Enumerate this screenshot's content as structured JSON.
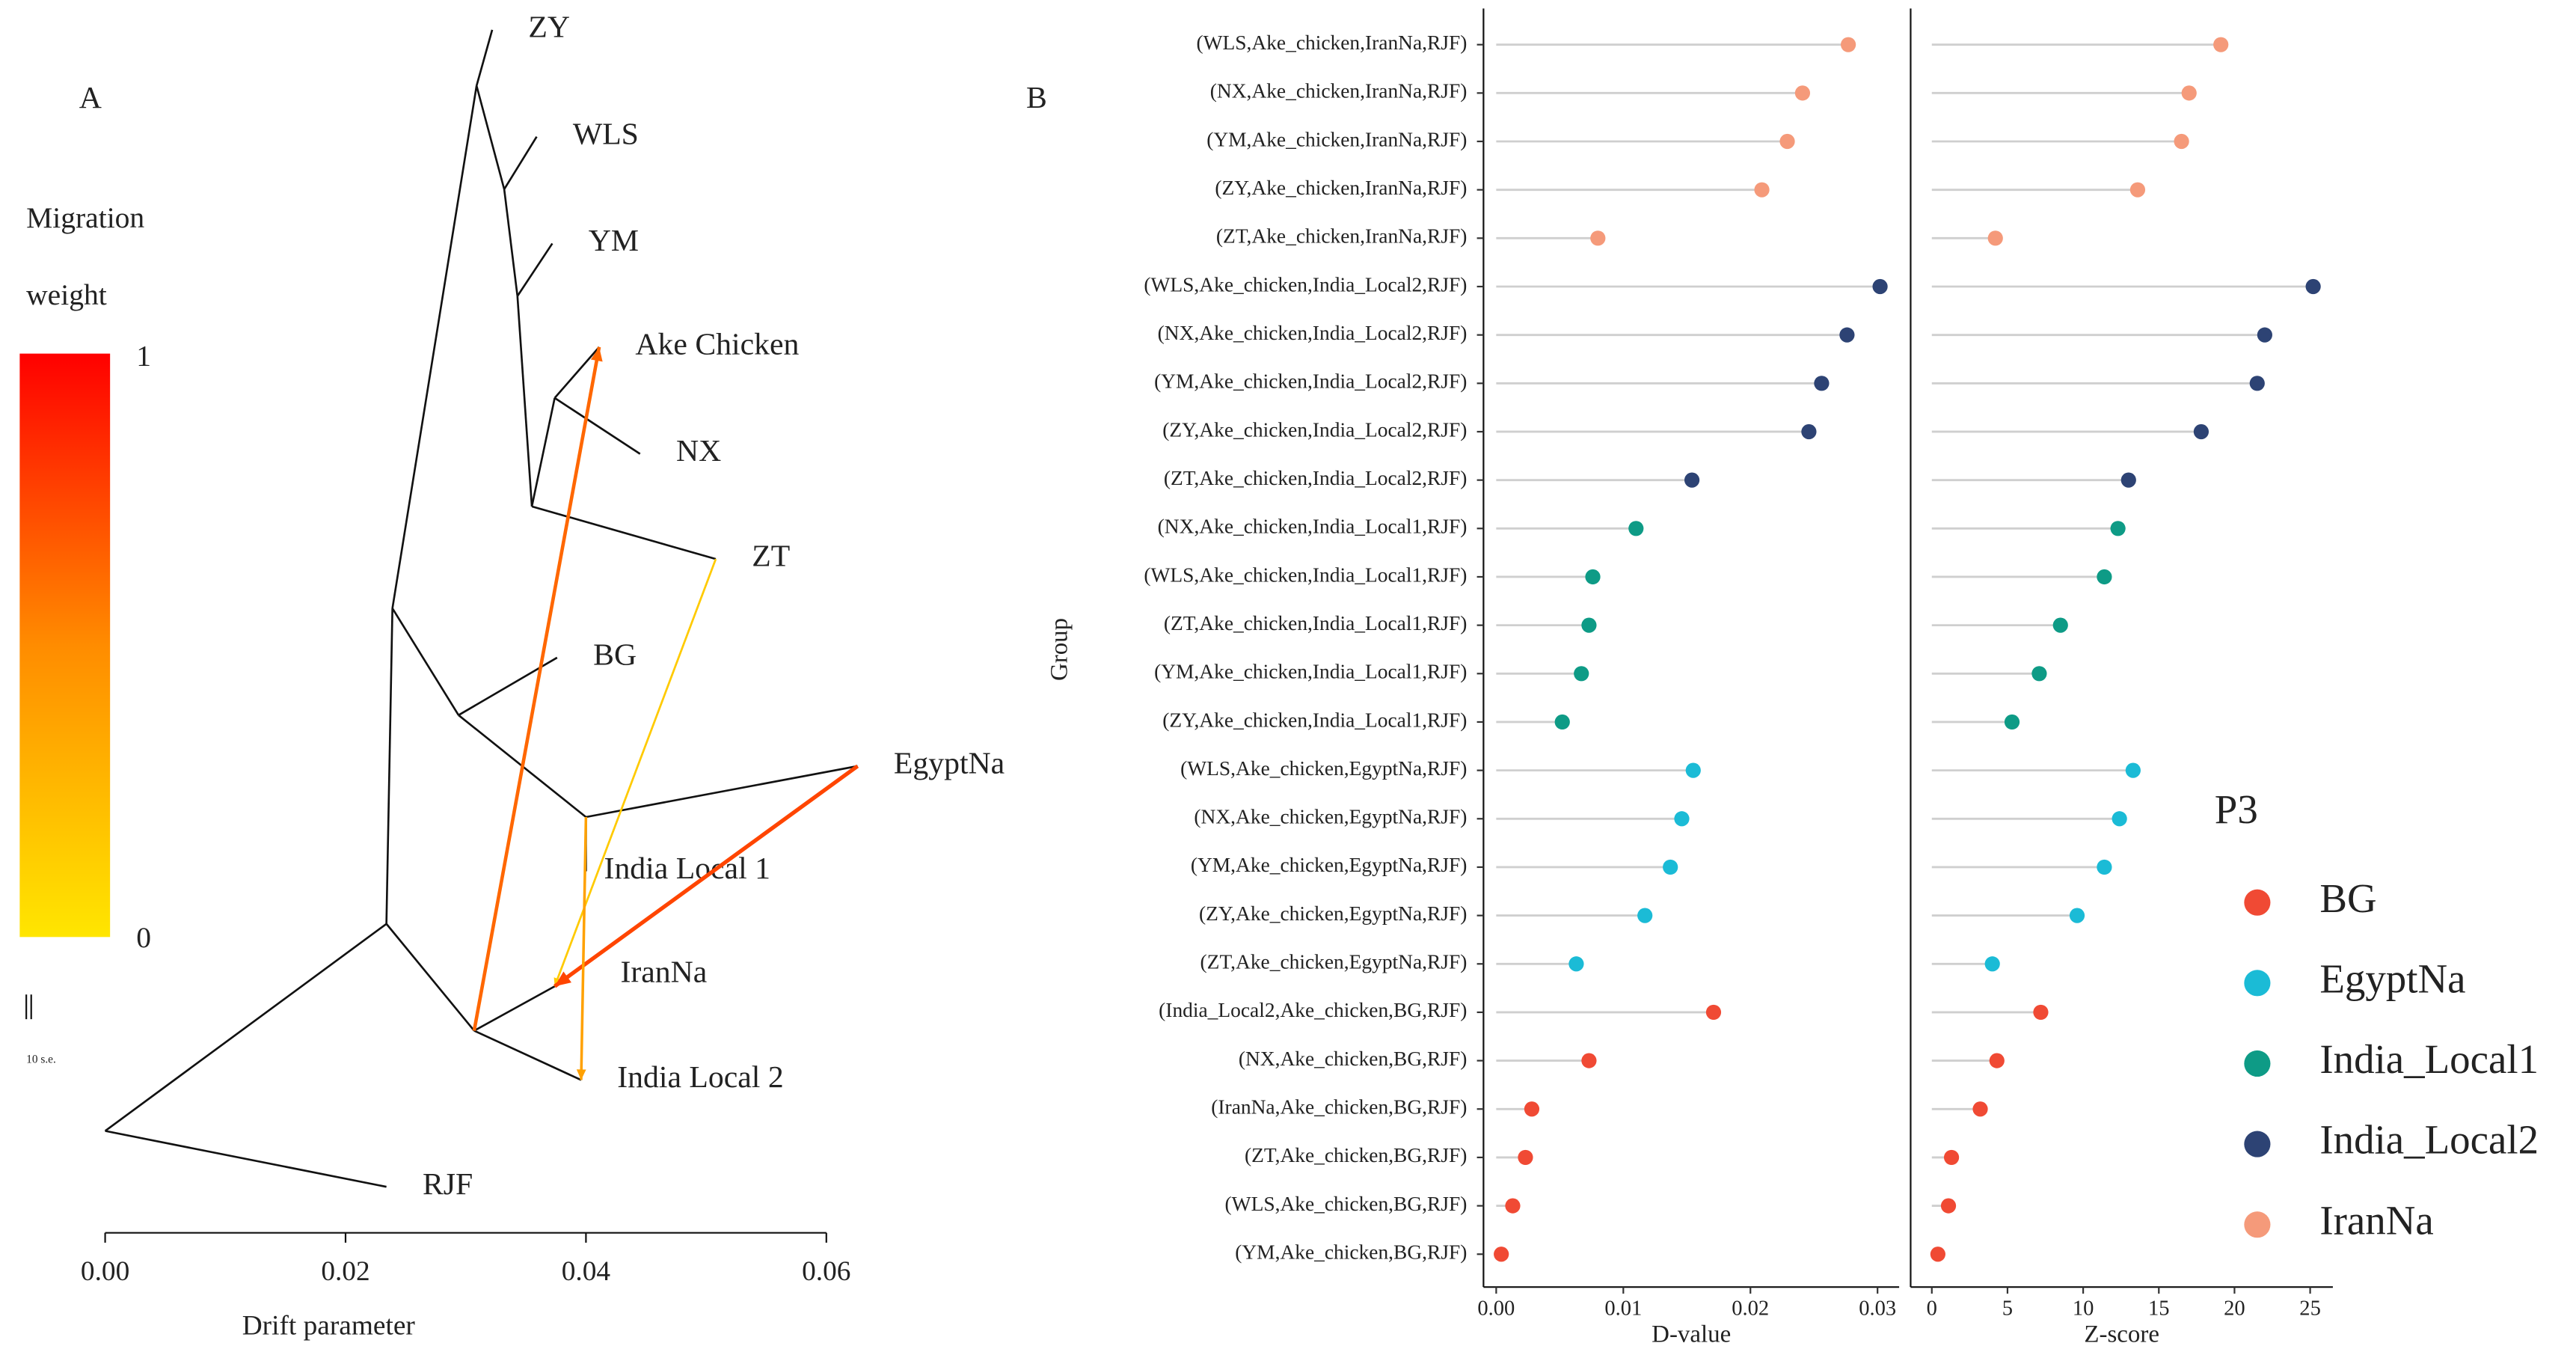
{
  "chart_data": [
    {
      "type": "tree",
      "panel_label": "A",
      "xlabel": "Drift parameter",
      "xlim": [
        0,
        0.0626
      ],
      "xticks": [
        {
          "value": 0,
          "label": "0.00"
        },
        {
          "value": 0.02,
          "label": "0.02"
        },
        {
          "value": 0.04,
          "label": "0.04"
        },
        {
          "value": 0.06,
          "label": "0.06"
        }
      ],
      "nodes": [
        {
          "x": 0
        },
        {
          "name": "RJF",
          "x": 0.0234
        },
        {
          "x": 0.0234
        },
        {
          "x": 0.0307
        },
        {
          "name": "IranNa",
          "x": 0.0374
        },
        {
          "name": "India Local 2",
          "x": 0.0396
        },
        {
          "x": 0.0239
        },
        {
          "x": 0.0294
        },
        {
          "name": "BG",
          "x": 0.0376
        },
        {
          "x": 0.04
        },
        {
          "name": "India Local 1",
          "x": 0.04
        },
        {
          "name": "EgyptNa",
          "x": 0.0626
        },
        {
          "x": 0.0309
        },
        {
          "name": "ZY",
          "x": 0.0322
        },
        {
          "x": 0.0332
        },
        {
          "name": "WLS",
          "x": 0.0359
        },
        {
          "x": 0.0343
        },
        {
          "name": "YM",
          "x": 0.0372
        },
        {
          "x": 0.0355
        },
        {
          "name": "ZT",
          "x": 0.0508
        },
        {
          "x": 0.0374
        },
        {
          "name": "NX",
          "x": 0.0445
        },
        {
          "name": "Ake Chicken",
          "x": 0.0411
        }
      ],
      "edges": [
        [
          0,
          1
        ],
        [
          0,
          2
        ],
        [
          2,
          6
        ],
        [
          2,
          3
        ],
        [
          3,
          4
        ],
        [
          3,
          5
        ],
        [
          6,
          12
        ],
        [
          6,
          7
        ],
        [
          7,
          8
        ],
        [
          7,
          9
        ],
        [
          9,
          10
        ],
        [
          9,
          11
        ],
        [
          12,
          13
        ],
        [
          12,
          14
        ],
        [
          14,
          15
        ],
        [
          14,
          16
        ],
        [
          16,
          17
        ],
        [
          16,
          18
        ],
        [
          18,
          19
        ],
        [
          18,
          20
        ],
        [
          20,
          21
        ],
        [
          20,
          22
        ]
      ],
      "migrations": [
        {
          "from": 3,
          "to": 22,
          "weight": 0.55
        },
        {
          "from": 19,
          "to": 4,
          "weight": 0.12
        },
        {
          "from": 11,
          "to": 4,
          "weight": 0.7
        },
        {
          "from": 9,
          "to": 5,
          "weight": 0.3
        }
      ],
      "colorbar_title": [
        "Migration",
        "weight"
      ],
      "colorbar_ticks": [
        0,
        1
      ],
      "scale_label": "10 s.e."
    },
    {
      "type": "lollipop",
      "panel_label": "B",
      "xlabel": "D-value",
      "ylabel": "Group",
      "legend_title": "P3",
      "xlim": [
        -0.001,
        0.0317
      ],
      "xticks": [
        {
          "value": 0,
          "label": "0.00"
        },
        {
          "value": 0.01,
          "label": "0.01"
        },
        {
          "value": 0.02,
          "label": "0.02"
        },
        {
          "value": 0.03,
          "label": "0.03"
        }
      ],
      "categories": [
        "(WLS,Ake_chicken,IranNa,RJF)",
        "(NX,Ake_chicken,IranNa,RJF)",
        "(YM,Ake_chicken,IranNa,RJF)",
        "(ZY,Ake_chicken,IranNa,RJF)",
        "(ZT,Ake_chicken,IranNa,RJF)",
        "(WLS,Ake_chicken,India_Local2,RJF)",
        "(NX,Ake_chicken,India_Local2,RJF)",
        "(YM,Ake_chicken,India_Local2,RJF)",
        "(ZY,Ake_chicken,India_Local2,RJF)",
        "(ZT,Ake_chicken,India_Local2,RJF)",
        "(NX,Ake_chicken,India_Local1,RJF)",
        "(WLS,Ake_chicken,India_Local1,RJF)",
        "(ZT,Ake_chicken,India_Local1,RJF)",
        "(YM,Ake_chicken,India_Local1,RJF)",
        "(ZY,Ake_chicken,India_Local1,RJF)",
        "(WLS,Ake_chicken,EgyptNa,RJF)",
        "(NX,Ake_chicken,EgyptNa,RJF)",
        "(YM,Ake_chicken,EgyptNa,RJF)",
        "(ZY,Ake_chicken,EgyptNa,RJF)",
        "(ZT,Ake_chicken,EgyptNa,RJF)",
        "(India_Local2,Ake_chicken,BG,RJF)",
        "(NX,Ake_chicken,BG,RJF)",
        "(IranNa,Ake_chicken,BG,RJF)",
        "(ZT,Ake_chicken,BG,RJF)",
        "(WLS,Ake_chicken,BG,RJF)",
        "(YM,Ake_chicken,BG,RJF)"
      ],
      "series": [
        {
          "name": "BG",
          "color": "#f04a34",
          "values": [
            null,
            null,
            null,
            null,
            null,
            null,
            null,
            null,
            null,
            null,
            null,
            null,
            null,
            null,
            null,
            null,
            null,
            null,
            null,
            null,
            0.0171,
            0.0073,
            0.0028,
            0.0023,
            0.0013,
            0.0004
          ]
        },
        {
          "name": "EgyptNa",
          "color": "#1bbbd6",
          "values": [
            null,
            null,
            null,
            null,
            null,
            null,
            null,
            null,
            null,
            null,
            null,
            null,
            null,
            null,
            null,
            0.0155,
            0.0146,
            0.0137,
            0.0117,
            0.0063,
            null,
            null,
            null,
            null,
            null,
            null
          ]
        },
        {
          "name": "India_Local1",
          "color": "#0e9b86",
          "values": [
            null,
            null,
            null,
            null,
            null,
            null,
            null,
            null,
            null,
            null,
            0.011,
            0.0076,
            0.0073,
            0.0067,
            0.0052,
            null,
            null,
            null,
            null,
            null,
            null,
            null,
            null,
            null,
            null,
            null
          ]
        },
        {
          "name": "India_Local2",
          "color": "#2d4374",
          "values": [
            null,
            null,
            null,
            null,
            null,
            0.0302,
            0.0276,
            0.0256,
            0.0246,
            0.0154,
            null,
            null,
            null,
            null,
            null,
            null,
            null,
            null,
            null,
            null,
            null,
            null,
            null,
            null,
            null,
            null
          ]
        },
        {
          "name": "IranNa",
          "color": "#f59a7a",
          "values": [
            0.0277,
            0.0241,
            0.0229,
            0.0209,
            0.008,
            null,
            null,
            null,
            null,
            null,
            null,
            null,
            null,
            null,
            null,
            null,
            null,
            null,
            null,
            null,
            null,
            null,
            null,
            null,
            null,
            null
          ]
        }
      ]
    },
    {
      "type": "lollipop",
      "xlabel": "Z-score",
      "xlim": [
        -1.4,
        26.5
      ],
      "xticks": [
        0,
        5,
        10,
        15,
        20,
        25
      ],
      "series": [
        {
          "values": [
            null,
            null,
            null,
            null,
            null,
            null,
            null,
            null,
            null,
            null,
            null,
            null,
            null,
            null,
            null,
            null,
            null,
            null,
            null,
            null,
            7.2,
            4.3,
            3.2,
            1.3,
            1.1,
            0.4
          ]
        },
        {
          "values": [
            null,
            null,
            null,
            null,
            null,
            null,
            null,
            null,
            null,
            null,
            null,
            null,
            null,
            null,
            null,
            13.3,
            12.4,
            11.4,
            9.6,
            4.0,
            null,
            null,
            null,
            null,
            null,
            null
          ]
        },
        {
          "values": [
            null,
            null,
            null,
            null,
            null,
            null,
            null,
            null,
            null,
            null,
            12.3,
            11.4,
            8.5,
            7.1,
            5.3,
            null,
            null,
            null,
            null,
            null,
            null,
            null,
            null,
            null,
            null,
            null
          ]
        },
        {
          "values": [
            null,
            null,
            null,
            null,
            null,
            25.2,
            22.0,
            21.5,
            17.8,
            13.0,
            null,
            null,
            null,
            null,
            null,
            null,
            null,
            null,
            null,
            null,
            null,
            null,
            null,
            null,
            null,
            null
          ]
        },
        {
          "values": [
            19.1,
            17.0,
            16.5,
            13.6,
            4.2,
            null,
            null,
            null,
            null,
            null,
            null,
            null,
            null,
            null,
            null,
            null,
            null,
            null,
            null,
            null,
            null,
            null,
            null,
            null,
            null,
            null
          ]
        }
      ]
    }
  ]
}
